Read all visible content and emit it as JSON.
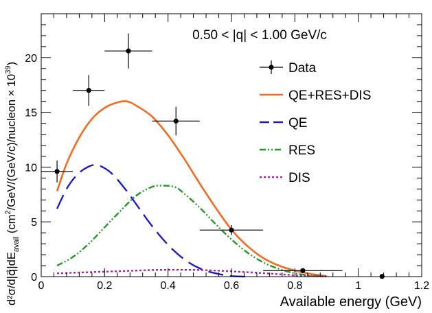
{
  "chart_data": {
    "type": "line",
    "annotation": "0.50 < |q| < 1.00 GeV/c",
    "xlabel": "Available energy (GeV)",
    "ylabel": "d²σ/d|q⃗|dE_avail (cm²/GeV/(GeV/c)/nucleon × 10³⁹)",
    "xlim": [
      0,
      1.2
    ],
    "ylim": [
      0,
      24
    ],
    "x_ticks": [
      "0",
      "0.2",
      "0.4",
      "0.6",
      "0.8",
      "1",
      "1.2"
    ],
    "y_ticks": [
      "0",
      "5",
      "10",
      "15",
      "20"
    ],
    "legend_position": "top-right",
    "data_points": {
      "name": "Data",
      "color": "#000000",
      "points": [
        {
          "x": 0.05,
          "y": 9.6,
          "xerr": 0.05,
          "yerr": 1.0
        },
        {
          "x": 0.15,
          "y": 17.0,
          "xerr": 0.05,
          "yerr": 1.4
        },
        {
          "x": 0.275,
          "y": 20.6,
          "xerr": 0.075,
          "yerr": 1.6
        },
        {
          "x": 0.425,
          "y": 14.2,
          "xerr": 0.075,
          "yerr": 1.3
        },
        {
          "x": 0.6,
          "y": 4.25,
          "xerr": 0.1,
          "yerr": 0.45
        },
        {
          "x": 0.825,
          "y": 0.55,
          "xerr": 0.125,
          "yerr": 0.15
        },
        {
          "x": 1.075,
          "y": 0.02,
          "xerr": 0.0,
          "yerr": 0.02
        }
      ]
    },
    "series": [
      {
        "name": "QE+RES+DIS",
        "color": "#f26b21",
        "dash": "solid",
        "x": [
          0.05,
          0.08,
          0.12,
          0.16,
          0.2,
          0.24,
          0.27,
          0.3,
          0.35,
          0.4,
          0.45,
          0.5,
          0.55,
          0.6,
          0.65,
          0.7,
          0.75,
          0.8,
          0.85,
          0.9
        ],
        "values": [
          7.8,
          10.3,
          12.7,
          14.4,
          15.4,
          15.9,
          16.0,
          15.6,
          14.6,
          12.9,
          10.8,
          8.5,
          6.3,
          4.3,
          2.8,
          1.7,
          1.0,
          0.55,
          0.25,
          0.05
        ]
      },
      {
        "name": "QE",
        "color": "#1a1ac8",
        "dash": "long-dash",
        "x": [
          0.05,
          0.08,
          0.11,
          0.14,
          0.17,
          0.2,
          0.23,
          0.27,
          0.3,
          0.35,
          0.4,
          0.45,
          0.5,
          0.55,
          0.6,
          0.65
        ],
        "values": [
          6.2,
          8.0,
          9.2,
          9.9,
          10.2,
          9.9,
          9.2,
          7.8,
          6.6,
          4.6,
          2.9,
          1.6,
          0.75,
          0.3,
          0.05,
          0.0
        ]
      },
      {
        "name": "RES",
        "color": "#219a21",
        "dash": "dash-dot-dot",
        "x": [
          0.05,
          0.1,
          0.15,
          0.2,
          0.25,
          0.3,
          0.35,
          0.38,
          0.42,
          0.45,
          0.5,
          0.55,
          0.6,
          0.65,
          0.7,
          0.75,
          0.8,
          0.85,
          0.9
        ],
        "values": [
          1.0,
          1.8,
          3.0,
          4.5,
          6.0,
          7.4,
          8.2,
          8.3,
          8.2,
          7.6,
          6.3,
          4.8,
          3.4,
          2.2,
          1.3,
          0.7,
          0.3,
          0.1,
          0.02
        ]
      },
      {
        "name": "DIS",
        "color": "#b01ab0",
        "dash": "dotted",
        "x": [
          0.05,
          0.1,
          0.15,
          0.2,
          0.25,
          0.3,
          0.35,
          0.4,
          0.45,
          0.5,
          0.55,
          0.6,
          0.65,
          0.7,
          0.75,
          0.8,
          0.85,
          0.9
        ],
        "values": [
          0.3,
          0.35,
          0.4,
          0.45,
          0.5,
          0.55,
          0.6,
          0.62,
          0.62,
          0.6,
          0.55,
          0.48,
          0.4,
          0.32,
          0.22,
          0.12,
          0.05,
          0.02
        ]
      }
    ]
  }
}
